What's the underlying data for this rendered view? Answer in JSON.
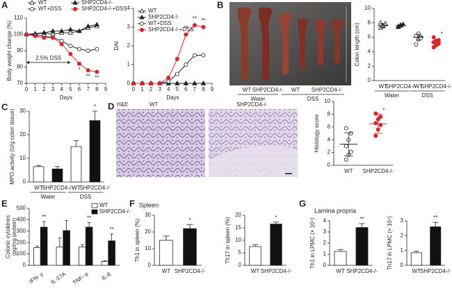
{
  "panel_labels": [
    "A",
    "B",
    "C",
    "D",
    "E",
    "F",
    "G"
  ],
  "photo_labels": {
    "groups": [
      "WT",
      "SHP2CD4-/-",
      "WT",
      "SHP2CD4-/-"
    ],
    "treatments": [
      "Water",
      "DSS"
    ]
  },
  "histology_labels": {
    "stain": "H&E",
    "left": "WT",
    "right": "SHP2CD4-/-"
  },
  "chart_data": [
    {
      "type": "line",
      "ylabel": "Body weight change (%)",
      "xlabel": "Days",
      "x": [
        0,
        1,
        2,
        3,
        4,
        5,
        6,
        7,
        8
      ],
      "xlim": [
        0,
        9
      ],
      "xticks": [
        0,
        1,
        2,
        3,
        4,
        5,
        6,
        7,
        8,
        9
      ],
      "ylim": [
        70,
        110
      ],
      "yticks": [
        70,
        80,
        90,
        100,
        110
      ],
      "legend": "top",
      "legend_columns": 2,
      "series": [
        {
          "name": "WT",
          "color": "#222222",
          "marker": "triangle-open",
          "values": [
            100,
            100.5,
            101,
            100,
            101,
            101,
            102,
            104,
            105
          ]
        },
        {
          "name": "SHP2CD4-/-",
          "color": "#222222",
          "marker": "triangle",
          "values": [
            100,
            100,
            101,
            102,
            102,
            103,
            102,
            105,
            106
          ]
        },
        {
          "name": "WT+DSS",
          "color": "#222222",
          "marker": "circle-open",
          "values": [
            100,
            99.5,
            99,
            98,
            96,
            93,
            91,
            90,
            91
          ]
        },
        {
          "name": "SHP2CD4-/-+DSS",
          "color": "#d7262b",
          "marker": "circle",
          "values": [
            100,
            99,
            98,
            98,
            94,
            88,
            82,
            78,
            77
          ]
        }
      ],
      "range_annotation": {
        "text": "2.5% DSS",
        "from": 0,
        "to": 5
      },
      "annotations": [
        {
          "text": "*",
          "index": 6,
          "series": 3
        },
        {
          "text": "**",
          "index": 7,
          "series": 3
        },
        {
          "text": "**",
          "index": 8,
          "series": 3
        }
      ]
    },
    {
      "type": "line",
      "ylabel": "DAI",
      "xlabel": "Days",
      "x": [
        0,
        1,
        2,
        3,
        4,
        5,
        6,
        7,
        8
      ],
      "xlim": [
        0,
        9
      ],
      "xticks": [
        0,
        1,
        2,
        3,
        4,
        5,
        6,
        7,
        8,
        9
      ],
      "ylim": [
        0,
        4
      ],
      "yticks": [
        0,
        1,
        2,
        3,
        4
      ],
      "legend": "top-left",
      "legend_columns": 1,
      "series": [
        {
          "name": "WT",
          "color": "#222222",
          "marker": "triangle-open",
          "values": [
            0,
            0,
            0,
            0,
            0,
            0,
            0,
            0,
            0
          ]
        },
        {
          "name": "SHP2CD4-/-",
          "color": "#222222",
          "marker": "triangle",
          "values": [
            0,
            0,
            0,
            0,
            0,
            0,
            0,
            0,
            0
          ]
        },
        {
          "name": "WT+DSS",
          "color": "#222222",
          "marker": "circle-open",
          "values": [
            0,
            0,
            0,
            0,
            0.1,
            0.5,
            1.0,
            1.5,
            1.5
          ]
        },
        {
          "name": "SHP2CD4-/-+DSS",
          "color": "#d7262b",
          "marker": "circle",
          "values": [
            0,
            0,
            0,
            0,
            0.3,
            1.3,
            2.6,
            3.1,
            3.0
          ]
        }
      ],
      "annotations": [
        {
          "text": "**",
          "index": 6,
          "series": 3
        },
        {
          "text": "**",
          "index": 7,
          "series": 3
        },
        {
          "text": "**",
          "index": 8,
          "series": 3
        }
      ]
    },
    {
      "type": "dot",
      "ylabel": "Colon length (cm)",
      "categories": [
        "WT",
        "SHP2CD4-/-",
        "WT",
        "SHP2CD4-/-"
      ],
      "groups": [
        "Water",
        "DSS"
      ],
      "ylim": [
        0,
        10
      ],
      "yticks": [
        0,
        2,
        4,
        6,
        8,
        10
      ],
      "markers": [
        "triangle-open",
        "triangle",
        "circle-open",
        "circle"
      ],
      "colors": [
        "#222222",
        "#222222",
        "#222222",
        "#d7262b"
      ],
      "points": [
        [
          7.3,
          7.5,
          7.8,
          8.0,
          7.6,
          7.9
        ],
        [
          7.4,
          7.6,
          7.8,
          7.5,
          7.7
        ],
        [
          5.0,
          5.7,
          6.0,
          6.2,
          6.5,
          5.9
        ],
        [
          4.6,
          4.9,
          5.1,
          5.3,
          5.5,
          5.6,
          6.0
        ]
      ],
      "means": [
        7.6,
        7.6,
        6.0,
        5.3
      ],
      "errors": [
        0.3,
        0.2,
        0.4,
        0.3
      ],
      "annotations": [
        {
          "text": "*",
          "index": 3
        }
      ]
    },
    {
      "type": "bar",
      "ylabel": "MPO activity (U/g colon tissue)",
      "categories": [
        "WT",
        "SHP2CD4-/-",
        "WT",
        "SHP2CD4-/-"
      ],
      "groups": [
        "Water",
        "DSS"
      ],
      "ylim": [
        0,
        30
      ],
      "yticks": [
        0,
        10,
        20,
        30
      ],
      "values": [
        6.5,
        5.5,
        15,
        26
      ],
      "errors": [
        0.5,
        1,
        2.5,
        4
      ],
      "colors": [
        "#ffffff",
        "#111111",
        "#ffffff",
        "#111111"
      ],
      "annotations": [
        {
          "text": "*",
          "index": 3
        }
      ]
    },
    {
      "type": "dot",
      "ylabel": "Histology score",
      "categories": [
        "WT",
        "SHP2CD4-/-"
      ],
      "ylim": [
        0,
        10
      ],
      "yticks": [
        0,
        2,
        4,
        6,
        8,
        10
      ],
      "markers": [
        "circle-open",
        "circle"
      ],
      "colors": [
        "#222222",
        "#d7262b"
      ],
      "points": [
        [
          0.9,
          1.6,
          2.1,
          3.0,
          4.0,
          5.0,
          5.8
        ],
        [
          4.6,
          5.6,
          6.3,
          6.6,
          7.2,
          7.6,
          8.1
        ]
      ],
      "means": [
        3.3,
        6.5
      ],
      "errors": [
        1.8,
        1.5
      ],
      "annotations": [
        {
          "text": "*",
          "index": 1
        }
      ]
    },
    {
      "type": "grouped_bar",
      "ylabel": [
        "Colonic cytokines",
        "(pg/mg protein)"
      ],
      "categories": [
        "IFN- γ",
        "IL-17A",
        "TNF- α",
        "IL-6"
      ],
      "ylim": [
        0,
        500
      ],
      "yticks": [
        0,
        100,
        200,
        300,
        400,
        500
      ],
      "legend": "top-right",
      "series": [
        {
          "name": "WT",
          "color": "#ffffff",
          "values": [
            155,
            160,
            160,
            35
          ],
          "errors": [
            15,
            80,
            20,
            5
          ]
        },
        {
          "name": "SHP2CD4-/-",
          "color": "#111111",
          "values": [
            335,
            305,
            335,
            215
          ],
          "errors": [
            50,
            90,
            40,
            60
          ]
        }
      ],
      "annotations": [
        {
          "text": "**",
          "index": 0,
          "series": 1
        },
        {
          "text": "**",
          "index": 2,
          "series": 1
        },
        {
          "text": "**",
          "index": 3,
          "series": 1
        }
      ]
    },
    {
      "type": "bar",
      "title": "Spleen",
      "ylabel": "Th1 in spleen (%)",
      "categories": [
        "WT",
        "SHP2CD4-/-"
      ],
      "ylim": [
        0,
        30
      ],
      "yticks": [
        0,
        10,
        20,
        30
      ],
      "values": [
        15,
        22
      ],
      "errors": [
        2.5,
        2.5
      ],
      "colors": [
        "#ffffff",
        "#111111"
      ],
      "annotations": [
        {
          "text": "*",
          "index": 1
        }
      ]
    },
    {
      "type": "bar",
      "ylabel": "Th17 in spleen (%)",
      "categories": [
        "WT",
        "SHP2CD4-/-"
      ],
      "ylim": [
        0,
        20
      ],
      "yticks": [
        0,
        5,
        10,
        15,
        20
      ],
      "values": [
        7.5,
        16.5
      ],
      "errors": [
        0.8,
        0.8
      ],
      "colors": [
        "#ffffff",
        "#111111"
      ],
      "annotations": [
        {
          "text": "*",
          "index": 1
        }
      ]
    },
    {
      "type": "bar",
      "title": "Lamina propria",
      "ylabel": "Th1 in LPMC (× 10⁴)",
      "categories": [
        "WT",
        "SHP2CD4-/-"
      ],
      "ylim": [
        0,
        4
      ],
      "yticks": [
        0,
        1,
        2,
        3,
        4
      ],
      "values": [
        1.25,
        3.4
      ],
      "errors": [
        0.15,
        0.35
      ],
      "colors": [
        "#ffffff",
        "#111111"
      ],
      "annotations": [
        {
          "text": "**",
          "index": 1
        }
      ]
    },
    {
      "type": "bar",
      "ylabel": "Th17 in LPMC (× 10⁴)",
      "categories": [
        "WT",
        "SHP2CD4-/-"
      ],
      "ylim": [
        0,
        3
      ],
      "yticks": [
        0,
        1,
        2,
        3
      ],
      "values": [
        0.85,
        2.6
      ],
      "errors": [
        0.1,
        0.3
      ],
      "colors": [
        "#ffffff",
        "#111111"
      ],
      "annotations": [
        {
          "text": "**",
          "index": 1
        }
      ]
    }
  ]
}
